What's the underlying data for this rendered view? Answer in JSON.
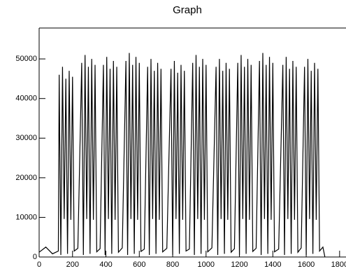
{
  "chart_data": {
    "type": "line",
    "title": "Graph",
    "color": "#000000",
    "xlim": [
      0,
      1830
    ],
    "ylim": [
      0,
      57800
    ],
    "xticks": [
      0,
      200,
      400,
      600,
      800,
      1000,
      1200,
      1400,
      1600,
      1800
    ],
    "yticks": [
      0,
      10000,
      20000,
      30000,
      40000,
      50000
    ],
    "x": [
      0,
      40,
      80,
      115,
      120,
      130,
      140,
      150,
      160,
      170,
      180,
      190,
      200,
      210,
      232,
      255,
      265,
      275,
      285,
      295,
      305,
      315,
      325,
      335,
      345,
      365,
      385,
      395,
      405,
      415,
      425,
      435,
      445,
      455,
      465,
      475,
      498,
      520,
      530,
      540,
      550,
      560,
      570,
      580,
      590,
      600,
      610,
      630,
      650,
      660,
      670,
      680,
      690,
      700,
      710,
      720,
      730,
      740,
      765,
      790,
      800,
      810,
      820,
      830,
      840,
      850,
      860,
      870,
      880,
      900,
      920,
      930,
      940,
      950,
      960,
      970,
      980,
      990,
      1000,
      1010,
      1035,
      1060,
      1070,
      1080,
      1090,
      1100,
      1110,
      1120,
      1130,
      1140,
      1150,
      1170,
      1190,
      1200,
      1210,
      1220,
      1230,
      1240,
      1250,
      1260,
      1270,
      1280,
      1300,
      1320,
      1330,
      1340,
      1350,
      1360,
      1370,
      1380,
      1390,
      1400,
      1410,
      1435,
      1460,
      1470,
      1480,
      1490,
      1500,
      1510,
      1520,
      1530,
      1540,
      1550,
      1570,
      1590,
      1600,
      1610,
      1620,
      1630,
      1640,
      1650,
      1660,
      1670,
      1680,
      1700,
      1712
    ],
    "values": [
      1200,
      2500,
      800,
      1500,
      46000,
      500,
      48000,
      9600,
      45000,
      800,
      47000,
      9400,
      45500,
      1500,
      2200,
      49000,
      500,
      51000,
      9600,
      48000,
      800,
      50000,
      9400,
      48500,
      1300,
      2100,
      48500,
      500,
      50500,
      9600,
      47500,
      800,
      49500,
      9400,
      48000,
      1200,
      2300,
      49500,
      500,
      51500,
      9600,
      48500,
      800,
      50500,
      9400,
      49000,
      1400,
      2000,
      48000,
      500,
      50000,
      9600,
      47000,
      800,
      49000,
      9400,
      47500,
      1300,
      2200,
      47500,
      500,
      49500,
      9600,
      46500,
      800,
      48500,
      9400,
      47000,
      1500,
      2000,
      49000,
      500,
      51000,
      9600,
      48000,
      800,
      50000,
      9400,
      48500,
      1300,
      2300,
      48000,
      500,
      50000,
      9600,
      47000,
      800,
      49000,
      9400,
      47500,
      1200,
      2100,
      49000,
      500,
      51000,
      9600,
      48000,
      800,
      50000,
      9400,
      48500,
      1400,
      2200,
      49500,
      500,
      51500,
      9600,
      48500,
      800,
      50500,
      9400,
      49000,
      1300,
      2000,
      48500,
      500,
      50500,
      9600,
      47500,
      800,
      49500,
      9400,
      48000,
      1200,
      2300,
      48000,
      500,
      50000,
      9600,
      47000,
      800,
      49000,
      9400,
      47500,
      1500,
      2500,
      0
    ]
  }
}
